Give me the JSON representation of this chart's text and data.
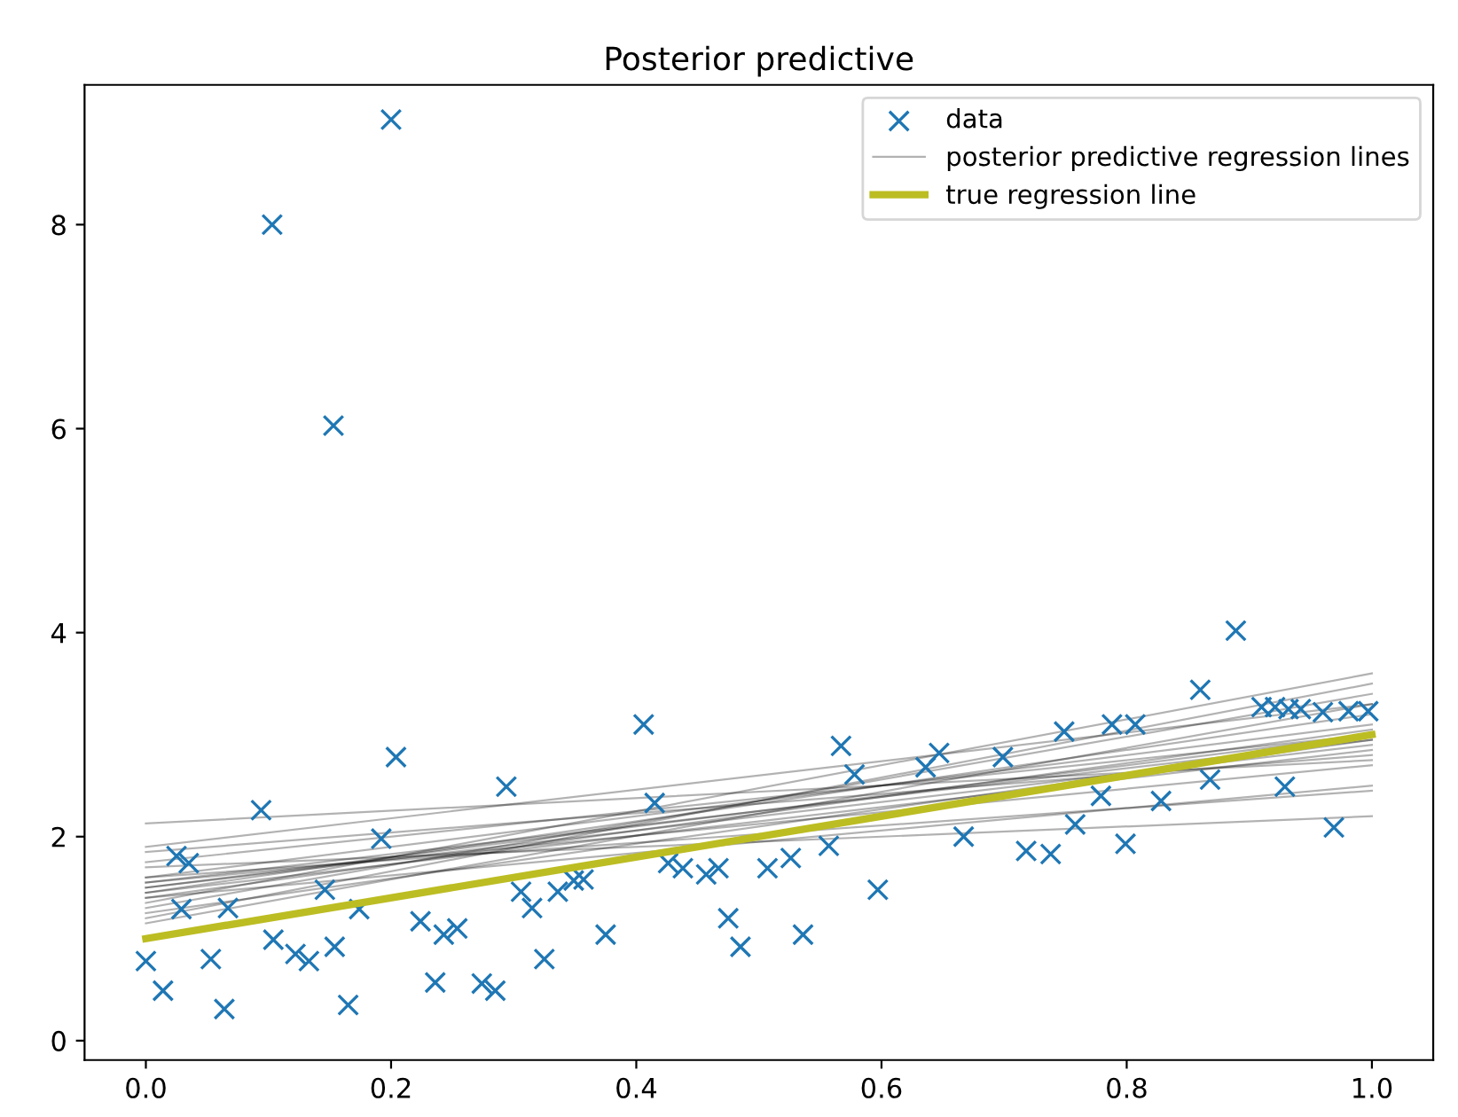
{
  "chart_data": {
    "type": "scatter",
    "title": "Posterior predictive",
    "xlim": [
      -0.05,
      1.05
    ],
    "xticks": [
      {
        "value": 0,
        "label": "0.0"
      },
      {
        "value": 0.2,
        "label": "0.2"
      },
      {
        "value": 0.4,
        "label": "0.4"
      },
      {
        "value": 0.6,
        "label": "0.6"
      },
      {
        "value": 0.8,
        "label": "0.8"
      },
      {
        "value": 1,
        "label": "1.0"
      }
    ],
    "ylim": [
      -0.19,
      9.37
    ],
    "yticks": [
      0,
      2,
      4,
      6,
      8
    ],
    "grid": false,
    "legend": "top right",
    "series": [
      {
        "name": "data",
        "marker": "cross",
        "color": "#1f77b4",
        "x": [
          0.0,
          0.014,
          0.025,
          0.029,
          0.035,
          0.053,
          0.064,
          0.067,
          0.094,
          0.103,
          0.104,
          0.122,
          0.133,
          0.146,
          0.153,
          0.154,
          0.165,
          0.174,
          0.192,
          0.2,
          0.204,
          0.224,
          0.236,
          0.243,
          0.254,
          0.274,
          0.285,
          0.294,
          0.306,
          0.315,
          0.325,
          0.336,
          0.349,
          0.357,
          0.375,
          0.406,
          0.415,
          0.426,
          0.438,
          0.457,
          0.467,
          0.475,
          0.485,
          0.507,
          0.526,
          0.536,
          0.557,
          0.567,
          0.578,
          0.597,
          0.636,
          0.647,
          0.667,
          0.699,
          0.718,
          0.738,
          0.749,
          0.758,
          0.779,
          0.788,
          0.799,
          0.807,
          0.828,
          0.86,
          0.868,
          0.889,
          0.91,
          0.921,
          0.929,
          0.932,
          0.942,
          0.96,
          0.969,
          0.981,
          0.997
        ],
        "values": [
          0.78,
          0.49,
          1.81,
          1.29,
          1.74,
          0.8,
          0.31,
          1.3,
          2.26,
          8.0,
          0.99,
          0.85,
          0.78,
          1.48,
          6.03,
          0.92,
          0.35,
          1.29,
          1.98,
          9.03,
          2.78,
          1.17,
          0.57,
          1.04,
          1.1,
          0.56,
          0.49,
          2.49,
          1.46,
          1.3,
          0.8,
          1.46,
          1.57,
          1.58,
          1.04,
          3.1,
          2.33,
          1.74,
          1.69,
          1.63,
          1.69,
          1.2,
          0.92,
          1.69,
          1.79,
          1.04,
          1.91,
          2.89,
          2.61,
          1.48,
          2.68,
          2.82,
          2.0,
          2.78,
          1.86,
          1.83,
          3.03,
          2.12,
          2.4,
          3.1,
          1.93,
          3.1,
          2.35,
          3.44,
          2.56,
          4.02,
          3.27,
          3.27,
          2.49,
          3.25,
          3.25,
          3.22,
          2.09,
          3.23,
          3.23
        ]
      },
      {
        "name": "posterior predictive regression lines",
        "type": "line",
        "color": "#000000",
        "x": [
          0,
          1
        ],
        "values": [
          2.13,
          2.75
        ]
      },
      {
        "type": "line",
        "color": "#000000",
        "x": [
          0,
          1
        ],
        "values": [
          1.9,
          3.3
        ]
      },
      {
        "type": "line",
        "color": "#000000",
        "x": [
          0,
          1
        ],
        "values": [
          1.85,
          2.8
        ]
      },
      {
        "type": "line",
        "color": "#000000",
        "x": [
          0,
          1
        ],
        "values": [
          1.75,
          3.0
        ]
      },
      {
        "type": "line",
        "color": "#000000",
        "x": [
          0,
          1
        ],
        "values": [
          1.7,
          2.2
        ]
      },
      {
        "type": "line",
        "color": "#000000",
        "x": [
          0,
          1
        ],
        "values": [
          1.6,
          3.1
        ]
      },
      {
        "type": "line",
        "color": "#000000",
        "x": [
          0,
          1
        ],
        "values": [
          1.55,
          2.7
        ]
      },
      {
        "type": "line",
        "color": "#000000",
        "x": [
          0,
          1
        ],
        "values": [
          1.5,
          2.9
        ]
      },
      {
        "type": "line",
        "color": "#000000",
        "x": [
          0,
          1
        ],
        "values": [
          1.45,
          3.2
        ]
      },
      {
        "type": "line",
        "color": "#000000",
        "x": [
          0,
          1
        ],
        "values": [
          1.4,
          2.5
        ]
      },
      {
        "type": "line",
        "color": "#000000",
        "x": [
          0,
          1
        ],
        "values": [
          1.35,
          3.6
        ]
      },
      {
        "type": "line",
        "color": "#000000",
        "x": [
          0,
          1
        ],
        "values": [
          1.3,
          3.4
        ]
      },
      {
        "type": "line",
        "color": "#000000",
        "x": [
          0,
          1
        ],
        "values": [
          1.25,
          2.95
        ]
      },
      {
        "type": "line",
        "color": "#000000",
        "x": [
          0,
          1
        ],
        "values": [
          1.2,
          3.5
        ]
      },
      {
        "type": "line",
        "color": "#000000",
        "x": [
          0,
          1
        ],
        "values": [
          1.15,
          3.3
        ]
      },
      {
        "type": "line",
        "color": "#000000",
        "x": [
          0,
          1
        ],
        "values": [
          1.6,
          2.45
        ]
      },
      {
        "type": "line",
        "color": "#000000",
        "x": [
          0,
          1
        ],
        "values": [
          1.45,
          2.85
        ]
      },
      {
        "type": "line",
        "color": "#000000",
        "x": [
          0,
          1
        ],
        "values": [
          1.5,
          3.0
        ]
      },
      {
        "type": "line",
        "color": "#000000",
        "x": [
          0,
          1
        ],
        "values": [
          1.55,
          2.95
        ]
      },
      {
        "type": "line",
        "color": "#000000",
        "x": [
          0,
          1
        ],
        "values": [
          1.4,
          3.05
        ]
      },
      {
        "name": "true regression line",
        "type": "line",
        "color": "#bcbd22",
        "x": [
          0,
          1
        ],
        "values": [
          1.0,
          3.0
        ]
      }
    ]
  }
}
